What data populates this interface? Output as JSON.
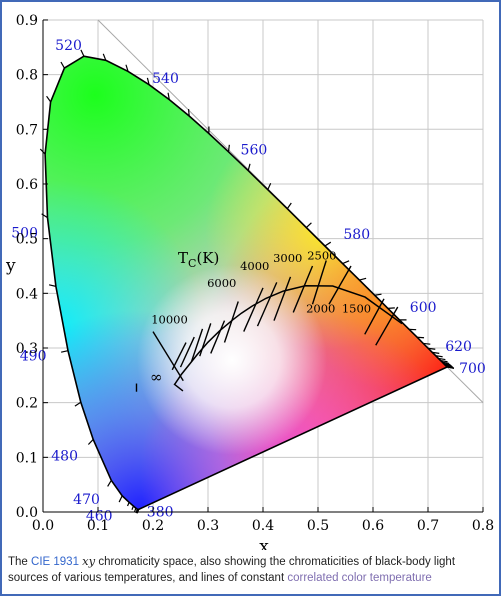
{
  "figure": {
    "x_axis_label": "x",
    "y_axis_label": "y",
    "x_ticks": [
      "0.0",
      "0.1",
      "0.2",
      "0.3",
      "0.4",
      "0.5",
      "0.6",
      "0.7",
      "0.8"
    ],
    "y_ticks": [
      "0.0",
      "0.1",
      "0.2",
      "0.3",
      "0.4",
      "0.5",
      "0.6",
      "0.7",
      "0.8",
      "0.9"
    ],
    "wavelength_labels": [
      {
        "text": "380",
        "x": 0.1741,
        "y": 0.005
      },
      {
        "text": "460",
        "x": 0.144,
        "y": 0.0297
      },
      {
        "text": "470",
        "x": 0.1241,
        "y": 0.0578
      },
      {
        "text": "480",
        "x": 0.0913,
        "y": 0.1327
      },
      {
        "text": "490",
        "x": 0.0454,
        "y": 0.295
      },
      {
        "text": "500",
        "x": 0.0082,
        "y": 0.5384
      },
      {
        "text": "520",
        "x": 0.0743,
        "y": 0.8338
      },
      {
        "text": "540",
        "x": 0.2296,
        "y": 0.7543
      },
      {
        "text": "560",
        "x": 0.3731,
        "y": 0.6245
      },
      {
        "text": "580",
        "x": 0.5125,
        "y": 0.4866
      },
      {
        "text": "600",
        "x": 0.627,
        "y": 0.3725
      },
      {
        "text": "620",
        "x": 0.6915,
        "y": 0.3083
      },
      {
        "text": "700",
        "x": 0.7347,
        "y": 0.2653
      }
    ],
    "planckian_label": {
      "main": "T",
      "sub": "C",
      "unit": "(K)"
    },
    "isotherm_labels": [
      "10000",
      "6000",
      "4000",
      "3000",
      "2500",
      "2000",
      "1500"
    ],
    "infinity_label": "∞",
    "colors": {
      "spectral_outline": "#000000",
      "wavelength_text": "#1a1acc",
      "gridline": "#c8c8c8",
      "diagonal_line": "#a8a8a8",
      "frame_border": "#4169b8"
    }
  },
  "caption": {
    "part1": "The ",
    "link_cie": "CIE 1931",
    "math_xy": "xy",
    "part2": " chromaticity space, also showing the chromaticities of black-body light sources of various temperatures, and lines of constant ",
    "link_cct": "correlated color temperature"
  }
}
